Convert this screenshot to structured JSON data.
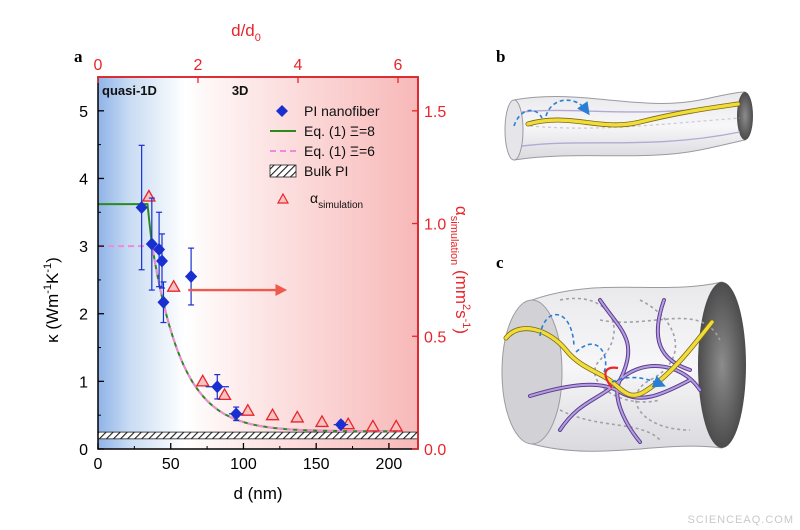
{
  "chart_data": {
    "type": "scatter",
    "panel_label": "a",
    "xlabel": "d (nm)",
    "ylabel_main": "κ (Wm",
    "ylabel_sup1": "-1",
    "ylabel_mid": "K",
    "ylabel_sup2": "-1",
    "ylabel_end": ")",
    "xlim": [
      0,
      220
    ],
    "ylim": [
      0,
      5.5
    ],
    "x_ticks": [
      0,
      50,
      100,
      150,
      200
    ],
    "y_ticks": [
      0,
      1,
      2,
      3,
      4,
      5
    ],
    "top_axis": {
      "label_main": "d/d",
      "label_sub": "0",
      "ticks": [
        0,
        2,
        4,
        6
      ],
      "lim": [
        0,
        6.4
      ],
      "color": "#e8252b"
    },
    "right_axis": {
      "label_alpha": "α",
      "label_sub": "simulation",
      "label_unit": " (mm",
      "label_sup": "2",
      "label_unit2": "s",
      "label_sup2": "-1",
      "label_end": ")",
      "ticks": [
        0.0,
        0.5,
        1.0,
        1.5
      ],
      "tick_labels": [
        "0.0",
        "0.5",
        "1.0",
        "1.5"
      ],
      "lim": [
        0,
        1.65
      ],
      "color": "#e8252b"
    },
    "regions": [
      {
        "label": "quasi-1D"
      },
      {
        "label": "3D"
      }
    ],
    "series": [
      {
        "name": "PI nanofiber",
        "marker": "diamond",
        "color": "#1a2fd0",
        "points": [
          {
            "x": 30,
            "y": 3.57,
            "xerr": 2,
            "yerr": 0.92
          },
          {
            "x": 37,
            "y": 3.03,
            "xerr": 3,
            "yerr": 0.68
          },
          {
            "x": 42,
            "y": 2.95,
            "xerr": 3,
            "yerr": 0.55
          },
          {
            "x": 44,
            "y": 2.78,
            "xerr": 2,
            "yerr": 0.4
          },
          {
            "x": 45,
            "y": 2.17,
            "xerr": 2,
            "yerr": 0.3
          },
          {
            "x": 64,
            "y": 2.55,
            "xerr": 4,
            "yerr": 0.42
          },
          {
            "x": 82,
            "y": 0.92,
            "xerr": 8,
            "yerr": 0.18
          },
          {
            "x": 95,
            "y": 0.52,
            "xerr": 5,
            "yerr": 0.1
          },
          {
            "x": 167,
            "y": 0.36,
            "xerr": 5,
            "yerr": 0.05
          }
        ]
      },
      {
        "name": "α_simulation",
        "marker": "triangle",
        "color": "#e8252b",
        "axis": "right",
        "x": [
          35,
          52,
          72,
          87,
          103,
          120,
          137,
          154,
          172,
          189,
          205
        ],
        "y": [
          1.12,
          0.72,
          0.3,
          0.24,
          0.17,
          0.15,
          0.14,
          0.12,
          0.11,
          0.1,
          0.1
        ]
      }
    ],
    "lines": [
      {
        "name": "Eq. (1)  Ξ=8",
        "color": "#2c8a1c",
        "style": "solid",
        "plateau": 3.62,
        "plateau_end": 34
      },
      {
        "name": "Eq. (1)  Ξ=6",
        "color": "#f08ad8",
        "style": "dashed",
        "plateau": 3.0,
        "plateau_end": 34
      }
    ],
    "bulk": {
      "name": "Bulk PI",
      "y_low": 0.15,
      "y_high": 0.25
    },
    "legend_placement": "top-right",
    "legend": [
      {
        "label": "PI nanofiber"
      },
      {
        "label": "Eq. (1)  Ξ=8"
      },
      {
        "label": "Eq. (1)  Ξ=6"
      },
      {
        "label": "Bulk PI"
      },
      {
        "label_main": "α",
        "label_sub": "simulation"
      }
    ]
  },
  "schematics": {
    "b": {
      "label": "b"
    },
    "c": {
      "label": "c"
    }
  },
  "watermark": "SCIENCEAQ.COM"
}
